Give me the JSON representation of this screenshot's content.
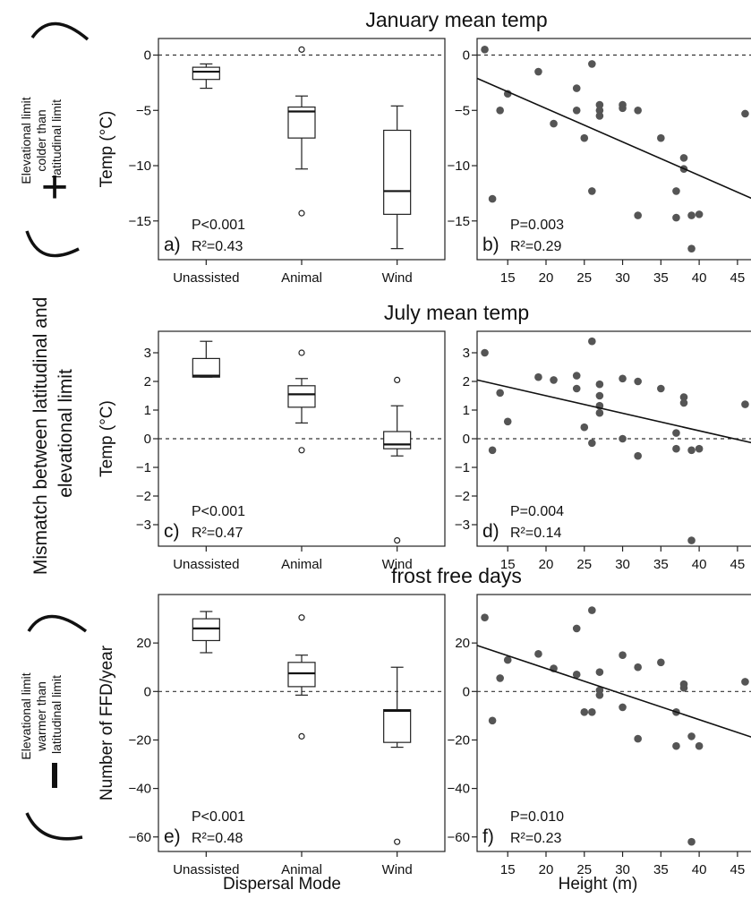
{
  "figure": {
    "side_labels": {
      "main": "Mismatch between latitudinal and elevational limit",
      "main_lines": [
        "Mismatch between latitudinal and",
        "elevational limit"
      ],
      "top_lines": [
        "Elevational limit",
        "colder than",
        "latitudinal limit"
      ],
      "top_sign": "+",
      "bottom_lines": [
        "Elevational limit",
        "warmer than",
        "latitudinal limit"
      ],
      "bottom_sign": "−"
    },
    "xlabels": {
      "left": "Dispersal Mode",
      "right": "Height (m)"
    }
  },
  "chart_data": [
    {
      "panel": "a",
      "type": "box",
      "title": "January mean temp",
      "ylabel": "Temp (°C)",
      "categories": [
        "Unassisted",
        "Animal",
        "Wind"
      ],
      "ylim": [
        -18.5,
        1.5
      ],
      "yticks": [
        0,
        -5,
        -10,
        -15
      ],
      "refline": 0,
      "boxes": [
        {
          "q1": -2.2,
          "median": -1.5,
          "q3": -1.1,
          "whisker_low": -3.0,
          "whisker_high": -0.8,
          "outliers": []
        },
        {
          "q1": -7.5,
          "median": -5.1,
          "q3": -4.7,
          "whisker_low": -10.3,
          "whisker_high": -3.7,
          "outliers": [
            0.5,
            -14.3
          ]
        },
        {
          "q1": -14.4,
          "median": -12.3,
          "q3": -6.8,
          "whisker_low": -17.5,
          "whisker_high": -4.6,
          "outliers": []
        }
      ],
      "stats": {
        "label": "a)",
        "p": "P<0.001",
        "r2": "R²=0.43"
      }
    },
    {
      "panel": "b",
      "type": "scatter",
      "xlabel": "Height (m)",
      "xlim": [
        11,
        47
      ],
      "xticks": [
        15,
        20,
        25,
        30,
        35,
        40,
        45
      ],
      "ylim": [
        -18.5,
        1.5
      ],
      "yticks": [
        0,
        -5,
        -10,
        -15
      ],
      "refline": 0,
      "points": [
        [
          12,
          0.5
        ],
        [
          13,
          -13.0
        ],
        [
          14,
          -5.0
        ],
        [
          15,
          -3.5
        ],
        [
          19,
          -1.5
        ],
        [
          21,
          -6.2
        ],
        [
          24,
          -3.0
        ],
        [
          24,
          -5.0
        ],
        [
          25,
          -7.5
        ],
        [
          26,
          -0.8
        ],
        [
          26,
          -12.3
        ],
        [
          27,
          -4.5
        ],
        [
          27,
          -5.0
        ],
        [
          27,
          -5.5
        ],
        [
          30,
          -4.5
        ],
        [
          30,
          -4.8
        ],
        [
          32,
          -5.0
        ],
        [
          32,
          -14.5
        ],
        [
          35,
          -7.5
        ],
        [
          37,
          -12.3
        ],
        [
          37,
          -14.7
        ],
        [
          38,
          -9.3
        ],
        [
          38,
          -10.3
        ],
        [
          39,
          -14.5
        ],
        [
          39,
          -17.5
        ],
        [
          40,
          -14.4
        ],
        [
          46,
          -5.3
        ]
      ],
      "fit": {
        "x": [
          11,
          47
        ],
        "y": [
          -2.1,
          -13.0
        ]
      },
      "stats": {
        "label": "b)",
        "p": "P=0.003",
        "r2": "R²=0.29"
      }
    },
    {
      "panel": "c",
      "type": "box",
      "title": "July mean temp",
      "ylabel": "Temp (°C)",
      "categories": [
        "Unassisted",
        "Animal",
        "Wind"
      ],
      "ylim": [
        -3.75,
        3.75
      ],
      "yticks": [
        3,
        2,
        1,
        0,
        -1,
        -2,
        -3
      ],
      "refline": 0,
      "boxes": [
        {
          "q1": 2.15,
          "median": 2.2,
          "q3": 2.8,
          "whisker_low": 2.15,
          "whisker_high": 3.4,
          "outliers": []
        },
        {
          "q1": 1.1,
          "median": 1.55,
          "q3": 1.85,
          "whisker_low": 0.55,
          "whisker_high": 2.1,
          "outliers": [
            3.0,
            -0.4
          ]
        },
        {
          "q1": -0.35,
          "median": -0.2,
          "q3": 0.25,
          "whisker_low": -0.6,
          "whisker_high": 1.15,
          "outliers": [
            2.05,
            -3.55
          ]
        }
      ],
      "stats": {
        "label": "c)",
        "p": "P<0.001",
        "r2": "R²=0.47"
      }
    },
    {
      "panel": "d",
      "type": "scatter",
      "xlabel": "Height (m)",
      "xlim": [
        11,
        47
      ],
      "xticks": [
        15,
        20,
        25,
        30,
        35,
        40,
        45
      ],
      "ylim": [
        -3.75,
        3.75
      ],
      "yticks": [
        3,
        2,
        1,
        0,
        -1,
        -2,
        -3
      ],
      "refline": 0,
      "points": [
        [
          12,
          3.0
        ],
        [
          13,
          -0.4
        ],
        [
          14,
          1.6
        ],
        [
          15,
          0.6
        ],
        [
          19,
          2.15
        ],
        [
          21,
          2.05
        ],
        [
          24,
          2.2
        ],
        [
          24,
          1.75
        ],
        [
          25,
          0.4
        ],
        [
          26,
          -0.15
        ],
        [
          26,
          3.4
        ],
        [
          27,
          1.9
        ],
        [
          27,
          1.5
        ],
        [
          27,
          1.15
        ],
        [
          27,
          0.9
        ],
        [
          30,
          2.1
        ],
        [
          30,
          0.0
        ],
        [
          32,
          2.0
        ],
        [
          32,
          -0.6
        ],
        [
          35,
          1.75
        ],
        [
          37,
          -0.35
        ],
        [
          37,
          0.2
        ],
        [
          38,
          1.45
        ],
        [
          38,
          1.25
        ],
        [
          39,
          -0.4
        ],
        [
          39,
          -3.55
        ],
        [
          40,
          -0.35
        ],
        [
          46,
          1.2
        ]
      ],
      "fit": {
        "x": [
          11,
          47
        ],
        "y": [
          2.05,
          -0.15
        ]
      },
      "stats": {
        "label": "d)",
        "p": "P=0.004",
        "r2": "R²=0.14"
      }
    },
    {
      "panel": "e",
      "type": "box",
      "title": "frost free days",
      "ylabel": "Number of FFD/year",
      "categories": [
        "Unassisted",
        "Animal",
        "Wind"
      ],
      "ylim": [
        -66,
        40
      ],
      "yticks": [
        20,
        0,
        -20,
        -40,
        -60
      ],
      "refline": 0,
      "boxes": [
        {
          "q1": 21,
          "median": 26,
          "q3": 30,
          "whisker_low": 16,
          "whisker_high": 33,
          "outliers": []
        },
        {
          "q1": 2,
          "median": 7.5,
          "q3": 12,
          "whisker_low": -1.5,
          "whisker_high": 15,
          "outliers": [
            30.5,
            -18.5
          ]
        },
        {
          "q1": -21,
          "median": -8,
          "q3": -7.5,
          "whisker_low": -23,
          "whisker_high": 10,
          "outliers": [
            -62
          ]
        }
      ],
      "stats": {
        "label": "e)",
        "p": "P<0.001",
        "r2": "R²=0.48"
      }
    },
    {
      "panel": "f",
      "type": "scatter",
      "xlabel": "Height (m)",
      "xlim": [
        11,
        47
      ],
      "xticks": [
        15,
        20,
        25,
        30,
        35,
        40,
        45
      ],
      "ylim": [
        -66,
        40
      ],
      "yticks": [
        20,
        0,
        -20,
        -40,
        -60
      ],
      "refline": 0,
      "points": [
        [
          12,
          30.5
        ],
        [
          13,
          -12
        ],
        [
          14,
          5.5
        ],
        [
          15,
          13
        ],
        [
          19,
          15.5
        ],
        [
          21,
          9.5
        ],
        [
          24,
          26
        ],
        [
          24,
          7
        ],
        [
          25,
          -8.5
        ],
        [
          26,
          -8.5
        ],
        [
          26,
          33.5
        ],
        [
          27,
          8
        ],
        [
          27,
          0.5
        ],
        [
          27,
          -1.5
        ],
        [
          30,
          15
        ],
        [
          30,
          -6.5
        ],
        [
          32,
          10
        ],
        [
          32,
          -19.5
        ],
        [
          35,
          12
        ],
        [
          37,
          -8.5
        ],
        [
          37,
          -22.5
        ],
        [
          38,
          3
        ],
        [
          38,
          1.5
        ],
        [
          39,
          -18.5
        ],
        [
          39,
          -62
        ],
        [
          40,
          -22.5
        ],
        [
          46,
          4
        ]
      ],
      "fit": {
        "x": [
          11,
          47
        ],
        "y": [
          19,
          -19
        ]
      },
      "stats": {
        "label": "f)",
        "p": "P=0.010",
        "r2": "R²=0.23"
      }
    }
  ]
}
